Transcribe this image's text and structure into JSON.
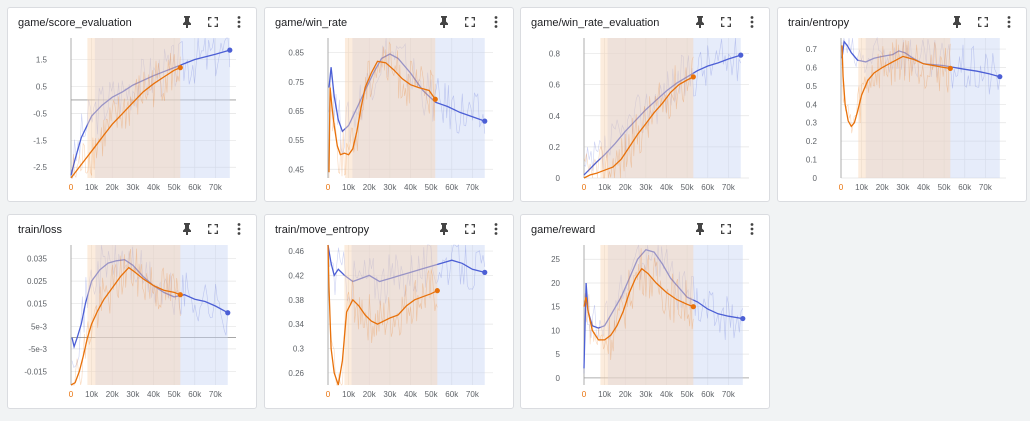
{
  "icons": {
    "pin": "pin-icon",
    "expand": "fullscreen-icon",
    "menu": "more-vert-icon"
  },
  "colors": {
    "blue": "#4c5fd5",
    "orange": "#e8710a",
    "blue_band": "#c7d4f5",
    "orange_band": "#f9d4b4"
  },
  "chart_data": [
    {
      "title": "game/score_evaluation",
      "type": "line",
      "xticks": [
        "0",
        "10k",
        "20k",
        "30k",
        "40k",
        "50k",
        "60k",
        "70k"
      ],
      "yticks": [
        "1.5",
        "0.5",
        "-0.5",
        "-1.5",
        "-2.5"
      ],
      "ylim": [
        -2.9,
        2.3
      ],
      "series": [
        {
          "color": "blue",
          "x": [
            0,
            2000,
            5000,
            10000,
            15000,
            20000,
            25000,
            30000,
            40000,
            50000,
            60000,
            70000,
            77000
          ],
          "y": [
            -2.8,
            -2.2,
            -1.4,
            -0.6,
            -0.2,
            0.1,
            0.3,
            0.55,
            0.9,
            1.2,
            1.5,
            1.7,
            1.85
          ]
        },
        {
          "color": "orange",
          "x": [
            0,
            3000,
            8000,
            12000,
            16000,
            20000,
            25000,
            30000,
            35000,
            40000,
            45000,
            50000,
            53000
          ],
          "y": [
            -2.9,
            -2.6,
            -2.1,
            -1.7,
            -1.3,
            -0.9,
            -0.5,
            -0.1,
            0.3,
            0.6,
            0.85,
            1.1,
            1.2
          ]
        }
      ]
    },
    {
      "title": "game/win_rate",
      "type": "line",
      "xticks": [
        "0",
        "10k",
        "20k",
        "30k",
        "40k",
        "50k",
        "60k",
        "70k"
      ],
      "yticks": [
        "0.85",
        "0.75",
        "0.65",
        "0.55",
        "0.45"
      ],
      "ylim": [
        0.42,
        0.9
      ],
      "series": [
        {
          "color": "blue",
          "x": [
            500,
            1500,
            3000,
            5000,
            7000,
            10000,
            14000,
            18000,
            22000,
            26000,
            30000,
            34000,
            40000,
            46000,
            52000,
            58000,
            64000,
            70000,
            76000
          ],
          "y": [
            0.73,
            0.8,
            0.7,
            0.62,
            0.58,
            0.6,
            0.66,
            0.72,
            0.78,
            0.83,
            0.845,
            0.83,
            0.78,
            0.72,
            0.68,
            0.665,
            0.645,
            0.63,
            0.615
          ]
        },
        {
          "color": "orange",
          "x": [
            500,
            1000,
            2000,
            3000,
            4500,
            6000,
            8000,
            10000,
            12000,
            14000,
            16000,
            18000,
            21000,
            24000,
            28000,
            32000,
            36000,
            40000,
            44000,
            49000,
            52000
          ],
          "y": [
            0.44,
            0.73,
            0.66,
            0.6,
            0.53,
            0.5,
            0.505,
            0.5,
            0.52,
            0.58,
            0.66,
            0.73,
            0.78,
            0.82,
            0.815,
            0.79,
            0.76,
            0.74,
            0.73,
            0.72,
            0.69
          ]
        }
      ]
    },
    {
      "title": "game/win_rate_evaluation",
      "type": "line",
      "xticks": [
        "0",
        "10k",
        "20k",
        "30k",
        "40k",
        "50k",
        "60k",
        "70k"
      ],
      "yticks": [
        "0.8",
        "0.6",
        "0.4",
        "0.2",
        "0"
      ],
      "ylim": [
        0,
        0.9
      ],
      "series": [
        {
          "color": "blue",
          "x": [
            0,
            3000,
            6000,
            10000,
            15000,
            20000,
            25000,
            30000,
            35000,
            40000,
            45000,
            50000,
            55000,
            60000,
            65000,
            70000,
            76000
          ],
          "y": [
            0.02,
            0.06,
            0.1,
            0.15,
            0.22,
            0.3,
            0.37,
            0.44,
            0.5,
            0.56,
            0.61,
            0.65,
            0.69,
            0.72,
            0.74,
            0.765,
            0.79
          ]
        },
        {
          "color": "orange",
          "x": [
            0,
            3000,
            6000,
            10000,
            14000,
            18000,
            22000,
            26000,
            30000,
            34000,
            38000,
            42000,
            46000,
            50000,
            53000
          ],
          "y": [
            0,
            0.02,
            0.03,
            0.05,
            0.07,
            0.12,
            0.2,
            0.28,
            0.35,
            0.42,
            0.48,
            0.55,
            0.6,
            0.63,
            0.65
          ]
        }
      ]
    },
    {
      "title": "train/entropy",
      "type": "line",
      "xticks": [
        "0",
        "10k",
        "20k",
        "30k",
        "40k",
        "50k",
        "60k",
        "70k"
      ],
      "yticks": [
        "0.7",
        "0.6",
        "0.5",
        "0.4",
        "0.3",
        "0.2",
        "0.1",
        "0"
      ],
      "ylim": [
        0,
        0.76
      ],
      "series": [
        {
          "color": "blue",
          "x": [
            500,
            1500,
            3000,
            5000,
            8000,
            12000,
            16000,
            20000,
            25000,
            28000,
            31000,
            35000,
            40000,
            45000,
            50000,
            55000,
            60000,
            66000,
            72000,
            77000
          ],
          "y": [
            0.65,
            0.74,
            0.72,
            0.68,
            0.64,
            0.63,
            0.65,
            0.66,
            0.67,
            0.69,
            0.68,
            0.65,
            0.62,
            0.615,
            0.61,
            0.6,
            0.59,
            0.58,
            0.565,
            0.55
          ]
        },
        {
          "color": "orange",
          "x": [
            500,
            1000,
            2000,
            3500,
            5000,
            6500,
            8000,
            10000,
            13000,
            16000,
            20000,
            25000,
            30000,
            35000,
            40000,
            45000,
            50000,
            53000
          ],
          "y": [
            0.72,
            0.55,
            0.4,
            0.31,
            0.28,
            0.3,
            0.36,
            0.45,
            0.53,
            0.57,
            0.6,
            0.63,
            0.66,
            0.645,
            0.62,
            0.61,
            0.6,
            0.595
          ]
        }
      ]
    },
    {
      "title": "train/loss",
      "type": "line",
      "xticks": [
        "0",
        "10k",
        "20k",
        "30k",
        "40k",
        "50k",
        "60k",
        "70k"
      ],
      "yticks": [
        "0.035",
        "0.025",
        "0.015",
        "5e-3",
        "-5e-3",
        "-0.015"
      ],
      "ylim": [
        -0.021,
        0.041
      ],
      "series": [
        {
          "color": "blue",
          "x": [
            500,
            1500,
            3000,
            5000,
            7000,
            10000,
            14000,
            18000,
            22000,
            26000,
            30000,
            35000,
            40000,
            45000,
            50000,
            55000,
            60000,
            65000,
            70000,
            76000
          ],
          "y": [
            0.0,
            -0.004,
            0.0,
            0.006,
            0.015,
            0.025,
            0.03,
            0.033,
            0.034,
            0.0345,
            0.032,
            0.027,
            0.023,
            0.02,
            0.018,
            0.019,
            0.017,
            0.016,
            0.014,
            0.011
          ]
        },
        {
          "color": "orange",
          "x": [
            0,
            2000,
            4000,
            6000,
            8000,
            10000,
            13000,
            16000,
            20000,
            24000,
            28000,
            31000,
            35000,
            40000,
            45000,
            50000,
            53000
          ],
          "y": [
            -0.021,
            -0.02,
            -0.015,
            -0.008,
            0.0,
            0.006,
            0.012,
            0.017,
            0.022,
            0.027,
            0.031,
            0.029,
            0.026,
            0.023,
            0.021,
            0.02,
            0.019
          ]
        }
      ]
    },
    {
      "title": "train/move_entropy",
      "type": "line",
      "xticks": [
        "0",
        "10k",
        "20k",
        "30k",
        "40k",
        "50k",
        "60k",
        "70k"
      ],
      "yticks": [
        "0.46",
        "0.42",
        "0.38",
        "0.34",
        "0.3",
        "0.26"
      ],
      "ylim": [
        0.24,
        0.47
      ],
      "series": [
        {
          "color": "blue",
          "x": [
            0,
            500,
            1500,
            3000,
            5000,
            8000,
            12000,
            16000,
            20000,
            25000,
            30000,
            35000,
            40000,
            45000,
            50000,
            55000,
            60000,
            65000,
            70000,
            76000
          ],
          "y": [
            0.47,
            0.46,
            0.44,
            0.42,
            0.43,
            0.42,
            0.41,
            0.415,
            0.42,
            0.41,
            0.415,
            0.42,
            0.425,
            0.43,
            0.435,
            0.44,
            0.445,
            0.44,
            0.43,
            0.425
          ]
        },
        {
          "color": "orange",
          "x": [
            0,
            500,
            1500,
            3000,
            5000,
            7000,
            9000,
            12000,
            15000,
            18000,
            21000,
            24000,
            27000,
            30000,
            34000,
            38000,
            42000,
            46000,
            50000,
            53000
          ],
          "y": [
            0.47,
            0.4,
            0.3,
            0.26,
            0.22,
            0.28,
            0.36,
            0.38,
            0.37,
            0.355,
            0.345,
            0.34,
            0.345,
            0.35,
            0.355,
            0.37,
            0.38,
            0.385,
            0.39,
            0.395
          ]
        }
      ]
    },
    {
      "title": "game/reward",
      "type": "line",
      "xticks": [
        "0",
        "10k",
        "20k",
        "30k",
        "40k",
        "50k",
        "60k",
        "70k"
      ],
      "yticks": [
        "25",
        "20",
        "15",
        "10",
        "5",
        "0"
      ],
      "ylim": [
        -1.5,
        28
      ],
      "series": [
        {
          "color": "blue",
          "x": [
            0,
            1000,
            2000,
            4000,
            7000,
            10000,
            14000,
            18000,
            22000,
            26000,
            30000,
            34000,
            38000,
            42000,
            46000,
            50000,
            55000,
            60000,
            65000,
            70000,
            77000
          ],
          "y": [
            2,
            20,
            14,
            11,
            10.5,
            11,
            14,
            17,
            21,
            25,
            27,
            26.5,
            24,
            21,
            19,
            17,
            16,
            14.5,
            13.5,
            13,
            12.5
          ]
        },
        {
          "color": "orange",
          "x": [
            0,
            1000,
            2000,
            4000,
            7000,
            10000,
            13000,
            16000,
            19000,
            22000,
            25000,
            28000,
            31000,
            35000,
            40000,
            45000,
            50000,
            53000
          ],
          "y": [
            15,
            17,
            14,
            10,
            8,
            8,
            9,
            11,
            14,
            18,
            21,
            23,
            22,
            20,
            18,
            16.5,
            15.5,
            15
          ]
        }
      ]
    }
  ]
}
